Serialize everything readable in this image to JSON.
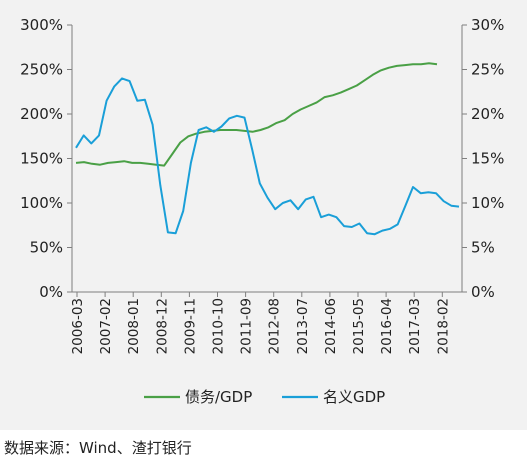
{
  "source_note": "数据来源：Wind、渣打银行",
  "colors": {
    "debt_gdp": "#4aa046",
    "nominal_gdp": "#1a9fd8",
    "axis": "#7f7f7f",
    "background": "#f2f2f2"
  },
  "chart_data": {
    "type": "line",
    "title": "",
    "xlabel": "",
    "y_left": {
      "ticks": [
        "0%",
        "50%",
        "100%",
        "150%",
        "200%",
        "250%",
        "300%"
      ],
      "lim": [
        0,
        300
      ]
    },
    "y_right": {
      "ticks": [
        "0%",
        "5%",
        "10%",
        "15%",
        "20%",
        "25%",
        "30%"
      ],
      "lim": [
        0,
        30
      ]
    },
    "x_ticks": [
      "2006-03",
      "2007-02",
      "2008-01",
      "2008-12",
      "2009-11",
      "2010-10",
      "2011-09",
      "2012-08",
      "2013-07",
      "2014-06",
      "2015-05",
      "2016-04",
      "2017-03",
      "2018-02"
    ],
    "legend_position": "bottom",
    "series": [
      {
        "name": "债务/GDP",
        "axis": "left",
        "values": [
          145,
          146,
          144,
          143,
          145,
          146,
          147,
          145,
          145,
          144,
          143,
          142,
          155,
          168,
          175,
          178,
          180,
          181,
          182,
          182,
          182,
          181,
          180,
          182,
          185,
          190,
          193,
          200,
          205,
          209,
          213,
          219,
          221,
          224,
          228,
          232,
          238,
          244,
          249,
          252,
          254,
          255,
          256,
          256,
          257,
          256
        ]
      },
      {
        "name": "名义GDP",
        "axis": "right",
        "values": [
          16.2,
          17.6,
          16.7,
          17.6,
          21.5,
          23.1,
          24.0,
          23.7,
          21.5,
          21.6,
          18.8,
          12.0,
          6.7,
          6.6,
          9.1,
          14.5,
          18.2,
          18.5,
          18.0,
          18.6,
          19.5,
          19.8,
          19.6,
          16.0,
          12.2,
          10.6,
          9.3,
          10.0,
          10.3,
          9.3,
          10.4,
          10.7,
          8.4,
          8.7,
          8.4,
          7.4,
          7.3,
          7.7,
          6.6,
          6.5,
          6.9,
          7.1,
          7.6,
          9.7,
          11.8,
          11.1,
          11.2,
          11.1,
          10.2,
          9.7,
          9.6
        ]
      }
    ]
  }
}
